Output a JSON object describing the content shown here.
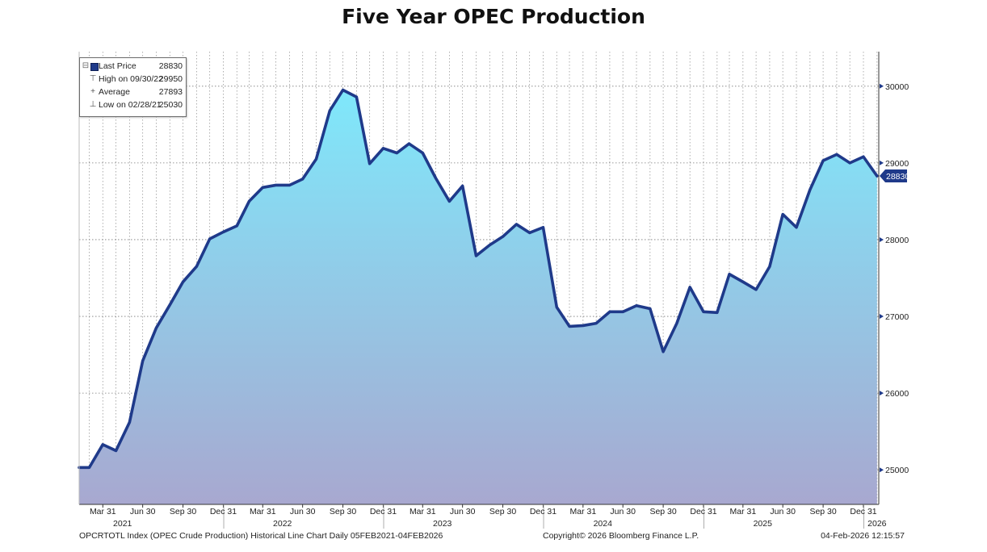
{
  "title": "Five Year OPEC Production",
  "chart_data": {
    "type": "area",
    "title": "Five Year OPEC Production",
    "xlabel": "",
    "ylabel": "",
    "ylim": [
      24550,
      30450
    ],
    "yticks": [
      25000,
      26000,
      27000,
      28000,
      29000,
      30000
    ],
    "y_tick_labels": [
      "25000",
      "26000",
      "27000",
      "28000",
      "29000",
      "30000"
    ],
    "y_axis_side": "right",
    "grid": true,
    "x_ticks": [
      {
        "date": "2021-03-31",
        "label": "Mar 31"
      },
      {
        "date": "2021-06-30",
        "label": "Jun 30"
      },
      {
        "date": "2021-09-30",
        "label": "Sep 30"
      },
      {
        "date": "2021-12-31",
        "label": "Dec 31"
      },
      {
        "date": "2022-03-31",
        "label": "Mar 31"
      },
      {
        "date": "2022-06-30",
        "label": "Jun 30"
      },
      {
        "date": "2022-09-30",
        "label": "Sep 30"
      },
      {
        "date": "2022-12-31",
        "label": "Dec 31"
      },
      {
        "date": "2023-03-31",
        "label": "Mar 31"
      },
      {
        "date": "2023-06-30",
        "label": "Jun 30"
      },
      {
        "date": "2023-09-30",
        "label": "Sep 30"
      },
      {
        "date": "2023-12-31",
        "label": "Dec 31"
      },
      {
        "date": "2024-03-31",
        "label": "Mar 31"
      },
      {
        "date": "2024-06-30",
        "label": "Jun 30"
      },
      {
        "date": "2024-09-30",
        "label": "Sep 30"
      },
      {
        "date": "2024-12-31",
        "label": "Dec 31"
      },
      {
        "date": "2025-03-31",
        "label": "Mar 31"
      },
      {
        "date": "2025-06-30",
        "label": "Jun 30"
      },
      {
        "date": "2025-09-30",
        "label": "Sep 30"
      },
      {
        "date": "2025-12-31",
        "label": "Dec 31"
      }
    ],
    "year_labels": [
      {
        "date": "2021-05-15",
        "label": "2021"
      },
      {
        "date": "2022-05-15",
        "label": "2022"
      },
      {
        "date": "2023-05-15",
        "label": "2023"
      },
      {
        "date": "2024-05-15",
        "label": "2024"
      },
      {
        "date": "2025-05-15",
        "label": "2025"
      },
      {
        "date": "2026-01-31",
        "label": "2026"
      }
    ],
    "x_range": [
      "2021-02-05",
      "2026-02-04"
    ],
    "series": [
      {
        "name": "OPCRTOTL Index (OPEC Crude Production)",
        "color": "#1f3a8a",
        "fill_top": "#7fe8fb",
        "fill_bottom": "#a8a8d0",
        "points": [
          [
            "2021-02-28",
            25030
          ],
          [
            "2021-03-31",
            25330
          ],
          [
            "2021-04-30",
            25250
          ],
          [
            "2021-05-31",
            25620
          ],
          [
            "2021-06-30",
            26420
          ],
          [
            "2021-07-31",
            26850
          ],
          [
            "2021-08-31",
            27150
          ],
          [
            "2021-09-30",
            27450
          ],
          [
            "2021-10-31",
            27650
          ],
          [
            "2021-11-30",
            28010
          ],
          [
            "2021-12-31",
            28100
          ],
          [
            "2022-01-31",
            28180
          ],
          [
            "2022-02-28",
            28500
          ],
          [
            "2022-03-31",
            28680
          ],
          [
            "2022-04-30",
            28710
          ],
          [
            "2022-05-31",
            28710
          ],
          [
            "2022-06-30",
            28790
          ],
          [
            "2022-07-31",
            29050
          ],
          [
            "2022-08-31",
            29680
          ],
          [
            "2022-09-30",
            29950
          ],
          [
            "2022-10-31",
            29860
          ],
          [
            "2022-11-30",
            28990
          ],
          [
            "2022-12-31",
            29190
          ],
          [
            "2023-01-31",
            29130
          ],
          [
            "2023-02-28",
            29250
          ],
          [
            "2023-03-31",
            29130
          ],
          [
            "2023-04-30",
            28800
          ],
          [
            "2023-05-31",
            28500
          ],
          [
            "2023-06-30",
            28700
          ],
          [
            "2023-07-31",
            27790
          ],
          [
            "2023-08-31",
            27930
          ],
          [
            "2023-09-30",
            28040
          ],
          [
            "2023-10-31",
            28200
          ],
          [
            "2023-11-30",
            28090
          ],
          [
            "2023-12-31",
            28160
          ],
          [
            "2024-01-31",
            27120
          ],
          [
            "2024-02-29",
            26870
          ],
          [
            "2024-03-31",
            26880
          ],
          [
            "2024-04-30",
            26910
          ],
          [
            "2024-05-31",
            27060
          ],
          [
            "2024-06-30",
            27060
          ],
          [
            "2024-07-31",
            27140
          ],
          [
            "2024-08-31",
            27100
          ],
          [
            "2024-09-30",
            26540
          ],
          [
            "2024-10-31",
            26910
          ],
          [
            "2024-11-30",
            27380
          ],
          [
            "2024-12-31",
            27060
          ],
          [
            "2025-01-31",
            27050
          ],
          [
            "2025-02-28",
            27550
          ],
          [
            "2025-03-31",
            27450
          ],
          [
            "2025-04-30",
            27350
          ],
          [
            "2025-05-31",
            27650
          ],
          [
            "2025-06-30",
            28330
          ],
          [
            "2025-07-31",
            28160
          ],
          [
            "2025-08-31",
            28650
          ],
          [
            "2025-09-30",
            29030
          ],
          [
            "2025-10-31",
            29110
          ],
          [
            "2025-11-30",
            29000
          ],
          [
            "2025-12-31",
            29080
          ],
          [
            "2026-01-31",
            28830
          ]
        ]
      }
    ],
    "last_value_label": "28830",
    "legend": {
      "placement": "top-left",
      "rows": [
        {
          "symbol": "swatch",
          "label": "Last Price",
          "value": "28830"
        },
        {
          "symbol": "high",
          "label": "High on 09/30/22",
          "value": "29950"
        },
        {
          "symbol": "average",
          "label": "Average",
          "value": "27893"
        },
        {
          "symbol": "low",
          "label": "Low on 02/28/21",
          "value": "25030"
        }
      ]
    }
  },
  "footer": {
    "left": "OPCRTOTL Index (OPEC Crude Production) Historical Line Chart Daily 05FEB2021-04FEB2026",
    "center": "Copyright© 2026 Bloomberg Finance L.P.",
    "right": "04-Feb-2026 12:15:57"
  }
}
